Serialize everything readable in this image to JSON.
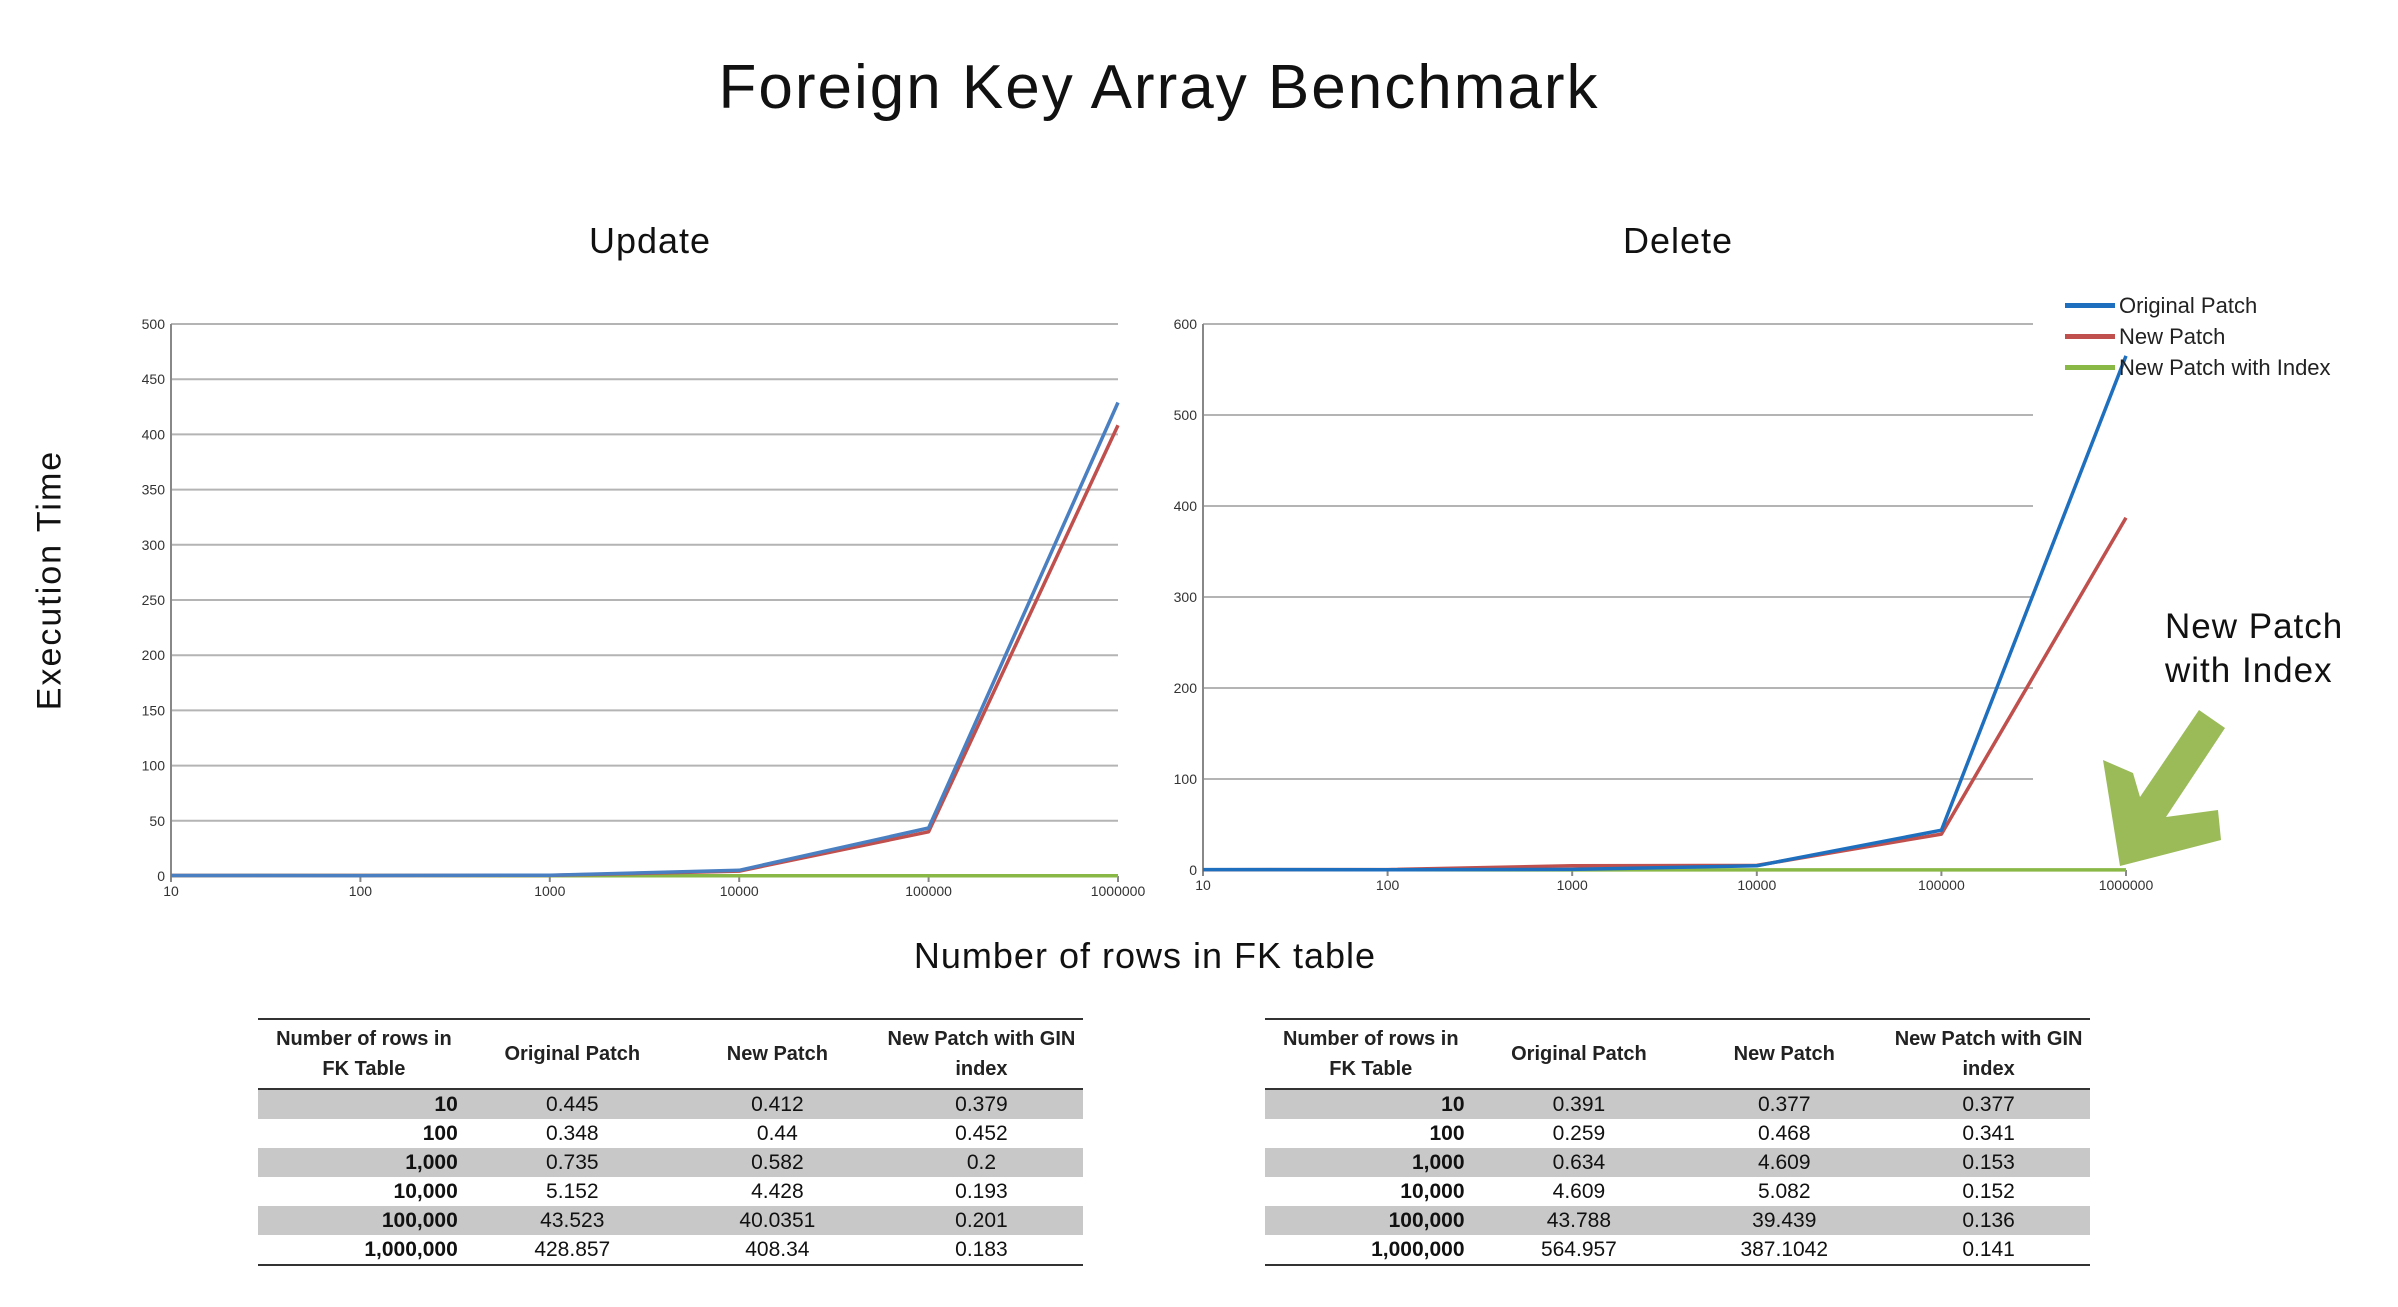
{
  "title": "Foreign Key Array Benchmark",
  "y_axis_title": "Execution Time",
  "x_axis_title": "Number of rows in FK table",
  "annotation": {
    "line1": "New Patch",
    "line2": "with Index",
    "arrow_color": "#9bbb59"
  },
  "legend": [
    {
      "name": "Original Patch",
      "color": "#1f6fbf"
    },
    {
      "name": "New Patch",
      "color": "#c0504d"
    },
    {
      "name": "New Patch with Index",
      "color": "#8ab847"
    }
  ],
  "chart_data": [
    {
      "type": "line",
      "title": "Update",
      "xscale": "log",
      "x": [
        "10",
        "100",
        "1000",
        "10000",
        "100000",
        "1000000"
      ],
      "ylim": [
        0,
        500
      ],
      "yticks": [
        0,
        50,
        100,
        150,
        200,
        250,
        300,
        350,
        400,
        450,
        500
      ],
      "grid": true,
      "series": [
        {
          "name": "Original Patch",
          "color": "#4a7fc1",
          "values": [
            0.445,
            0.348,
            0.735,
            5.152,
            43.523,
            428.857
          ]
        },
        {
          "name": "New Patch",
          "color": "#c0504d",
          "values": [
            0.412,
            0.44,
            0.582,
            4.428,
            40.0351,
            408.34
          ]
        },
        {
          "name": "New Patch with Index",
          "color": "#8ab847",
          "values": [
            0.379,
            0.452,
            0.2,
            0.193,
            0.201,
            0.183
          ]
        }
      ]
    },
    {
      "type": "line",
      "title": "Delete",
      "xscale": "log",
      "x": [
        "10",
        "100",
        "1000",
        "10000",
        "100000",
        "1000000"
      ],
      "ylim": [
        0,
        600
      ],
      "yticks": [
        0,
        100,
        200,
        300,
        400,
        500,
        600
      ],
      "grid": true,
      "legend_position": "top-right",
      "series": [
        {
          "name": "Original Patch",
          "color": "#1f6fbf",
          "values": [
            0.391,
            0.259,
            0.634,
            4.609,
            43.788,
            564.957
          ]
        },
        {
          "name": "New Patch",
          "color": "#c0504d",
          "values": [
            0.377,
            0.468,
            4.609,
            5.082,
            39.439,
            387.1042
          ]
        },
        {
          "name": "New Patch with Index",
          "color": "#8ab847",
          "values": [
            0.377,
            0.341,
            0.153,
            0.152,
            0.136,
            0.141
          ]
        }
      ]
    }
  ],
  "tables": [
    {
      "headers": [
        "Number of rows in FK Table",
        "Original Patch",
        "New Patch",
        "New Patch with GIN index"
      ],
      "rows": [
        [
          "10",
          "0.445",
          "0.412",
          "0.379"
        ],
        [
          "100",
          "0.348",
          "0.44",
          "0.452"
        ],
        [
          "1,000",
          "0.735",
          "0.582",
          "0.2"
        ],
        [
          "10,000",
          "5.152",
          "4.428",
          "0.193"
        ],
        [
          "100,000",
          "43.523",
          "40.0351",
          "0.201"
        ],
        [
          "1,000,000",
          "428.857",
          "408.34",
          "0.183"
        ]
      ]
    },
    {
      "headers": [
        "Number of rows in FK Table",
        "Original Patch",
        "New Patch",
        "New Patch with GIN index"
      ],
      "rows": [
        [
          "10",
          "0.391",
          "0.377",
          "0.377"
        ],
        [
          "100",
          "0.259",
          "0.468",
          "0.341"
        ],
        [
          "1,000",
          "0.634",
          "4.609",
          "0.153"
        ],
        [
          "10,000",
          "4.609",
          "5.082",
          "0.152"
        ],
        [
          "100,000",
          "43.788",
          "39.439",
          "0.136"
        ],
        [
          "1,000,000",
          "564.957",
          "387.1042",
          "0.141"
        ]
      ]
    }
  ]
}
